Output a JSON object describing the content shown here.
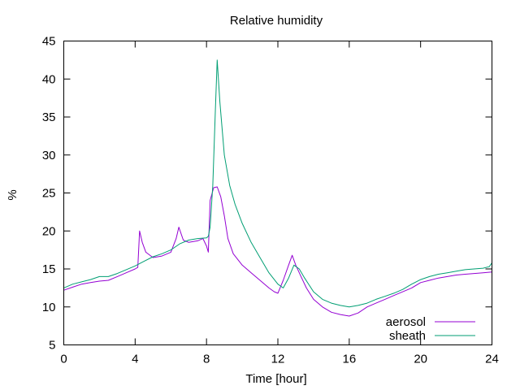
{
  "chart_data": {
    "type": "line",
    "title": "Relative humidity",
    "xlabel": "Time [hour]",
    "ylabel": "%",
    "xlim": [
      0,
      24
    ],
    "ylim": [
      5,
      45
    ],
    "x_ticks": [
      0,
      4,
      8,
      12,
      16,
      20,
      24
    ],
    "y_ticks": [
      5,
      10,
      15,
      20,
      25,
      30,
      35,
      40,
      45
    ],
    "grid": false,
    "legend": "bottom-right",
    "series": [
      {
        "name": "aerosol",
        "color": "#9400d3",
        "points": [
          [
            0,
            12.2
          ],
          [
            0.5,
            12.6
          ],
          [
            1,
            13.0
          ],
          [
            1.5,
            13.2
          ],
          [
            2,
            13.4
          ],
          [
            2.5,
            13.5
          ],
          [
            3,
            14.0
          ],
          [
            3.5,
            14.5
          ],
          [
            4,
            15.0
          ],
          [
            4.15,
            15.2
          ],
          [
            4.25,
            20.0
          ],
          [
            4.4,
            18.5
          ],
          [
            4.6,
            17.2
          ],
          [
            5,
            16.5
          ],
          [
            5.5,
            16.7
          ],
          [
            6,
            17.2
          ],
          [
            6.3,
            19.0
          ],
          [
            6.45,
            20.5
          ],
          [
            6.7,
            18.8
          ],
          [
            7,
            18.5
          ],
          [
            7.5,
            18.7
          ],
          [
            7.8,
            19.0
          ],
          [
            8.0,
            18.0
          ],
          [
            8.1,
            17.2
          ],
          [
            8.2,
            24.0
          ],
          [
            8.4,
            25.7
          ],
          [
            8.6,
            25.8
          ],
          [
            8.8,
            24.5
          ],
          [
            9.0,
            22.0
          ],
          [
            9.2,
            19.0
          ],
          [
            9.5,
            17.0
          ],
          [
            10,
            15.5
          ],
          [
            10.5,
            14.5
          ],
          [
            11,
            13.5
          ],
          [
            11.5,
            12.5
          ],
          [
            11.8,
            12.0
          ],
          [
            12.0,
            11.8
          ],
          [
            12.3,
            13.5
          ],
          [
            12.6,
            15.5
          ],
          [
            12.8,
            16.8
          ],
          [
            13.0,
            15.5
          ],
          [
            13.3,
            14.0
          ],
          [
            13.6,
            12.5
          ],
          [
            14.0,
            11.0
          ],
          [
            14.5,
            10.0
          ],
          [
            15.0,
            9.3
          ],
          [
            15.5,
            9.0
          ],
          [
            16,
            8.8
          ],
          [
            16.5,
            9.2
          ],
          [
            17,
            10.0
          ],
          [
            17.5,
            10.5
          ],
          [
            18,
            11.0
          ],
          [
            18.5,
            11.5
          ],
          [
            19,
            12.0
          ],
          [
            19.5,
            12.5
          ],
          [
            20,
            13.2
          ],
          [
            20.5,
            13.5
          ],
          [
            21,
            13.8
          ],
          [
            21.5,
            14.0
          ],
          [
            22,
            14.2
          ],
          [
            22.5,
            14.3
          ],
          [
            23,
            14.4
          ],
          [
            23.5,
            14.5
          ],
          [
            24,
            14.6
          ]
        ]
      },
      {
        "name": "sheath",
        "color": "#009e73",
        "points": [
          [
            0,
            12.5
          ],
          [
            0.5,
            13.0
          ],
          [
            1,
            13.3
          ],
          [
            1.5,
            13.6
          ],
          [
            2,
            14.0
          ],
          [
            2.5,
            14.0
          ],
          [
            3,
            14.4
          ],
          [
            3.5,
            14.9
          ],
          [
            4,
            15.4
          ],
          [
            4.5,
            16.0
          ],
          [
            5,
            16.6
          ],
          [
            5.5,
            17.0
          ],
          [
            6,
            17.5
          ],
          [
            6.5,
            18.3
          ],
          [
            7,
            18.8
          ],
          [
            7.5,
            19.0
          ],
          [
            8,
            19.1
          ],
          [
            8.1,
            19.3
          ],
          [
            8.2,
            20.5
          ],
          [
            8.35,
            26.0
          ],
          [
            8.5,
            36.0
          ],
          [
            8.6,
            42.5
          ],
          [
            8.75,
            37.0
          ],
          [
            9.0,
            30.0
          ],
          [
            9.3,
            26.0
          ],
          [
            9.6,
            23.5
          ],
          [
            10,
            21.0
          ],
          [
            10.5,
            18.5
          ],
          [
            11,
            16.5
          ],
          [
            11.5,
            14.5
          ],
          [
            12,
            13.0
          ],
          [
            12.3,
            12.5
          ],
          [
            12.6,
            13.8
          ],
          [
            12.9,
            15.5
          ],
          [
            13.2,
            15.0
          ],
          [
            13.5,
            13.8
          ],
          [
            14,
            12.0
          ],
          [
            14.5,
            11.0
          ],
          [
            15,
            10.5
          ],
          [
            15.5,
            10.2
          ],
          [
            16,
            10.0
          ],
          [
            16.5,
            10.2
          ],
          [
            17,
            10.5
          ],
          [
            17.5,
            11.0
          ],
          [
            18,
            11.4
          ],
          [
            18.5,
            11.8
          ],
          [
            19,
            12.3
          ],
          [
            19.5,
            13.0
          ],
          [
            20,
            13.6
          ],
          [
            20.5,
            14.0
          ],
          [
            21,
            14.3
          ],
          [
            21.5,
            14.5
          ],
          [
            22,
            14.7
          ],
          [
            22.5,
            14.9
          ],
          [
            23,
            15.0
          ],
          [
            23.5,
            15.1
          ],
          [
            23.85,
            15.3
          ],
          [
            24,
            15.8
          ]
        ]
      }
    ]
  }
}
